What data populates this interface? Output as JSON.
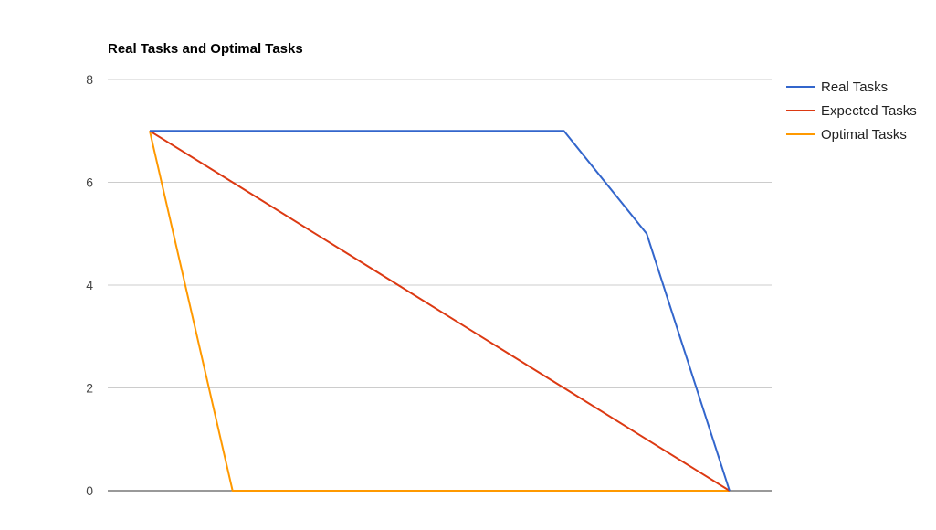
{
  "chart_data": {
    "type": "line",
    "title": "Real Tasks and Optimal Tasks",
    "xlabel": "",
    "ylabel": "",
    "x": [
      0,
      1,
      2,
      3,
      4,
      5,
      6,
      7
    ],
    "ylim": [
      0,
      8
    ],
    "yticks": [
      "0",
      "2",
      "4",
      "6",
      "8"
    ],
    "grid": true,
    "legend_position": "right",
    "series": [
      {
        "name": "Real Tasks",
        "color": "#3366cc",
        "values": [
          7,
          7,
          7,
          7,
          7,
          7,
          5,
          0
        ]
      },
      {
        "name": "Expected Tasks",
        "color": "#dc3912",
        "values": [
          7,
          6,
          5,
          4,
          3,
          2,
          1,
          0
        ]
      },
      {
        "name": "Optimal Tasks",
        "color": "#ff9900",
        "values": [
          7,
          0,
          0,
          0,
          0,
          0,
          0,
          0
        ]
      }
    ]
  }
}
